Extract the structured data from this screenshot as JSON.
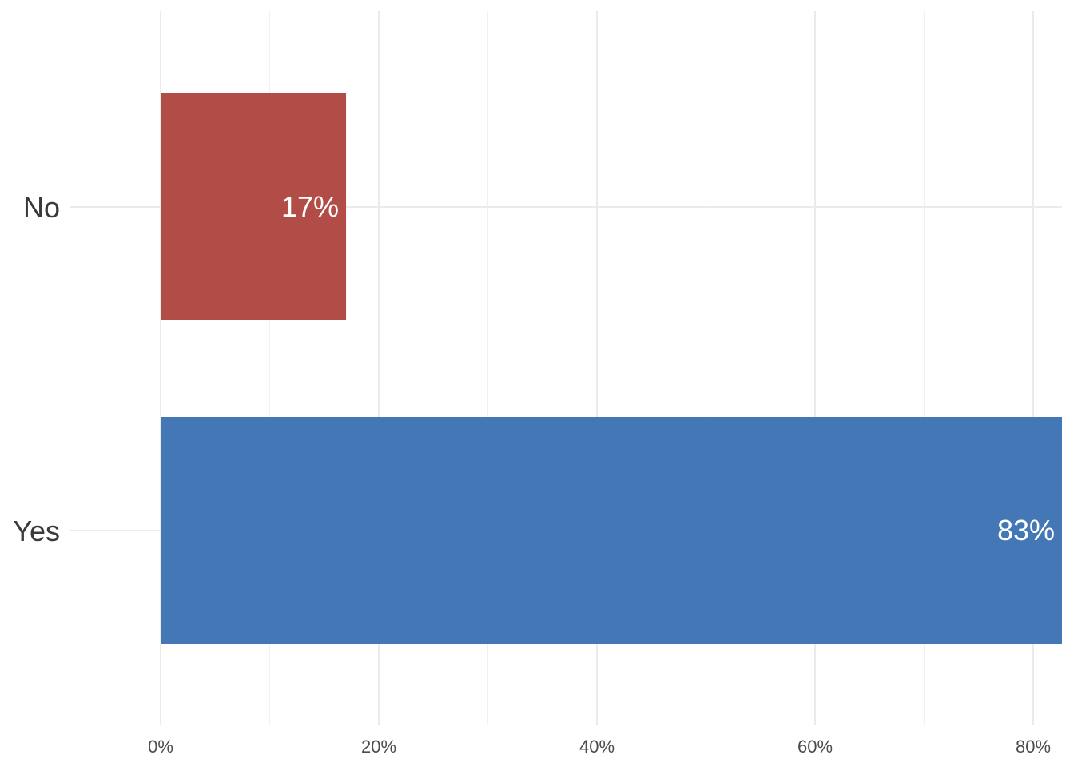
{
  "chart_data": {
    "type": "bar",
    "orientation": "horizontal",
    "title": "",
    "xlabel": "",
    "ylabel": "",
    "categories": [
      "No",
      "Yes"
    ],
    "values": [
      17,
      83
    ],
    "value_labels": [
      "17%",
      "83%"
    ],
    "bar_colors": [
      "#b24c47",
      "#4477b5"
    ],
    "xlim": [
      -8.3,
      83
    ],
    "x_ticks": [
      0,
      20,
      40,
      60,
      80
    ],
    "x_tick_labels": [
      "0%",
      "20%",
      "40%",
      "60%",
      "80%"
    ],
    "grid": true,
    "legend": "none"
  }
}
